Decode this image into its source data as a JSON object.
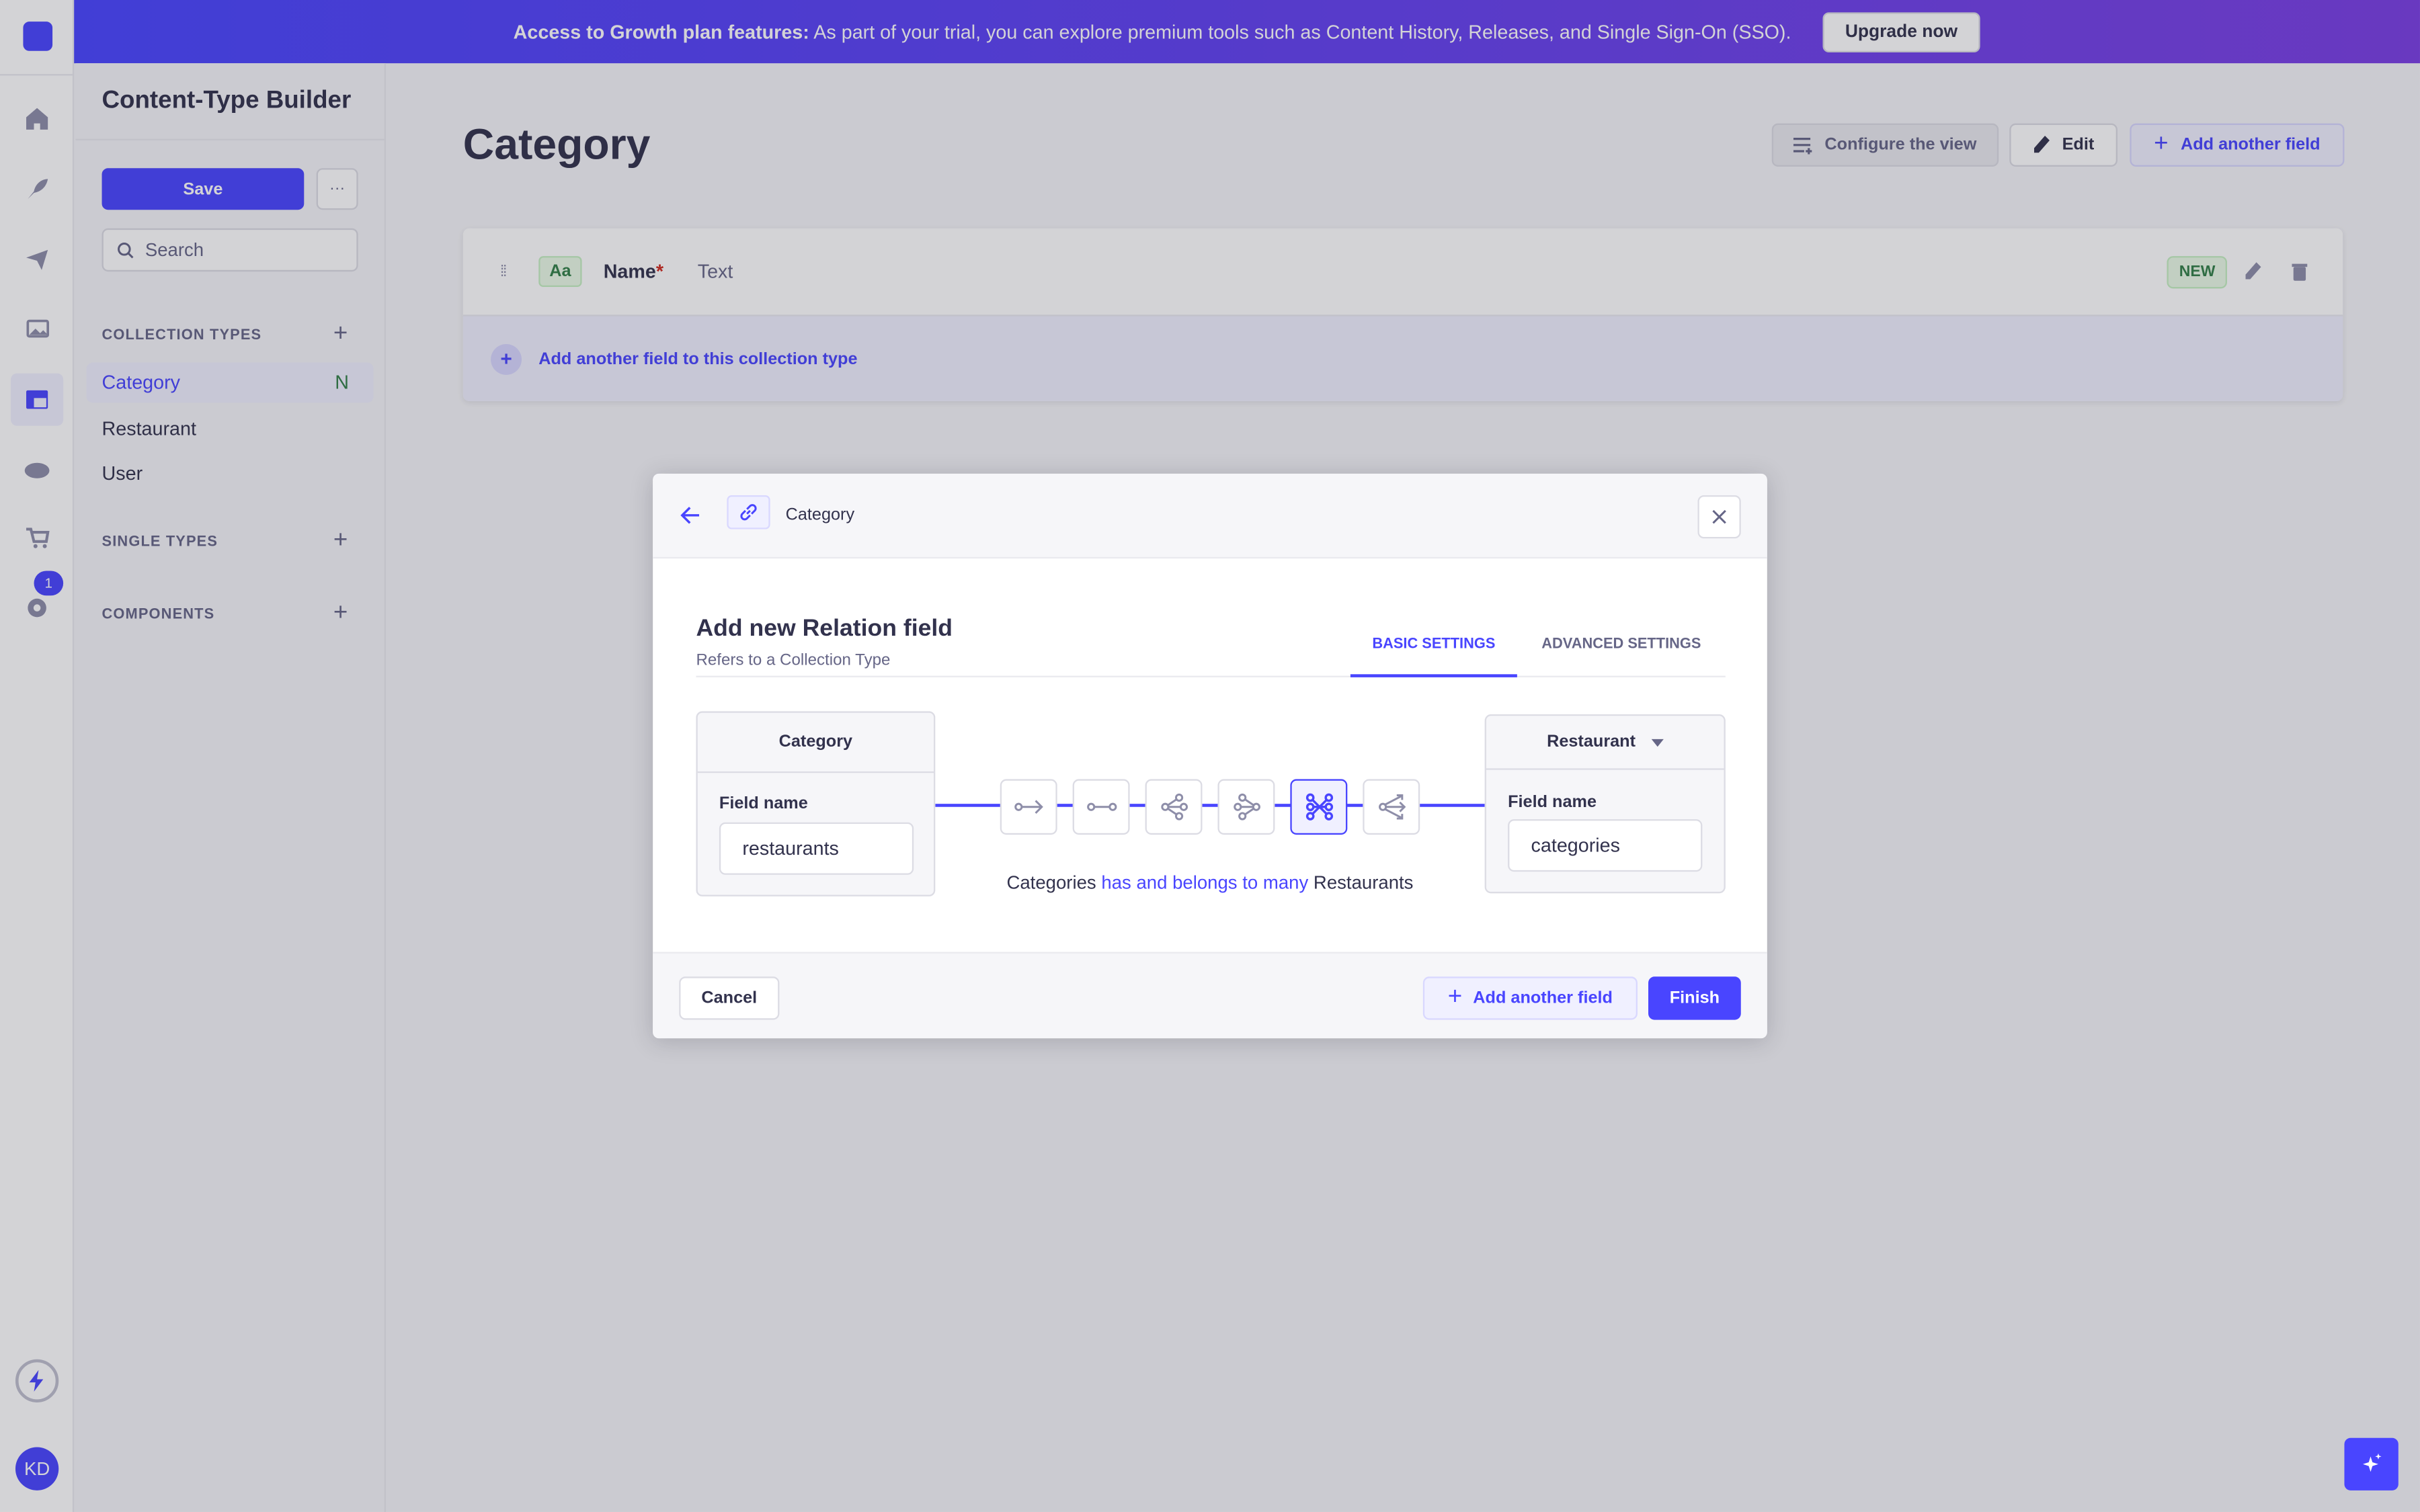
{
  "banner": {
    "bold": "Access to Growth plan features:",
    "text": "As part of your trial, you can explore premium tools such as Content History, Releases, and Single Sign-On (SSO).",
    "upgrade_label": "Upgrade now"
  },
  "nav": {
    "icons": [
      "home-icon",
      "feather-icon",
      "paper-plane-icon",
      "images-icon",
      "layout-icon",
      "cloud-icon",
      "cart-icon",
      "gear-icon"
    ],
    "settings_badge": "1",
    "avatar_initials": "KD"
  },
  "sidebar": {
    "title": "Content-Type Builder",
    "save_label": "Save",
    "more_label": "···",
    "search_placeholder": "Search",
    "collection_types_label": "COLLECTION TYPES",
    "collection_types": [
      {
        "label": "Category",
        "badge": "N",
        "active": true
      },
      {
        "label": "Restaurant"
      },
      {
        "label": "User"
      }
    ],
    "single_types_label": "SINGLE TYPES",
    "components_label": "COMPONENTS"
  },
  "main": {
    "title": "Category",
    "configure_label": "Configure the view",
    "edit_label": "Edit",
    "add_field_label": "Add another field",
    "fields": [
      {
        "icon": "Aa",
        "name": "Name",
        "required": "*",
        "type": "Text",
        "badge": "NEW"
      }
    ],
    "add_field_row_label": "Add another field to this collection type"
  },
  "modal": {
    "breadcrumb": "Category",
    "title": "Add new Relation field",
    "subtitle": "Refers to a Collection Type",
    "tabs": [
      {
        "label": "BASIC SETTINGS",
        "active": true
      },
      {
        "label": "ADVANCED SETTINGS"
      }
    ],
    "left": {
      "content_type": "Category",
      "field_label": "Field name",
      "field_value": "restaurants"
    },
    "right": {
      "content_type": "Restaurant",
      "field_label": "Field name",
      "field_value": "categories"
    },
    "relations": [
      "has-one",
      "has-one-bidirectional",
      "has-many",
      "many-to-one",
      "many-to-many",
      "many-way"
    ],
    "selected_relation": "many-to-many",
    "sentence": {
      "left": "Categories",
      "relation": "has and belongs to many",
      "right": "Restaurants"
    },
    "cancel_label": "Cancel",
    "add_another_label": "Add another field",
    "finish_label": "Finish"
  },
  "colors": {
    "primary": "#4945ff",
    "success": "#328048",
    "danger": "#d02b20"
  }
}
